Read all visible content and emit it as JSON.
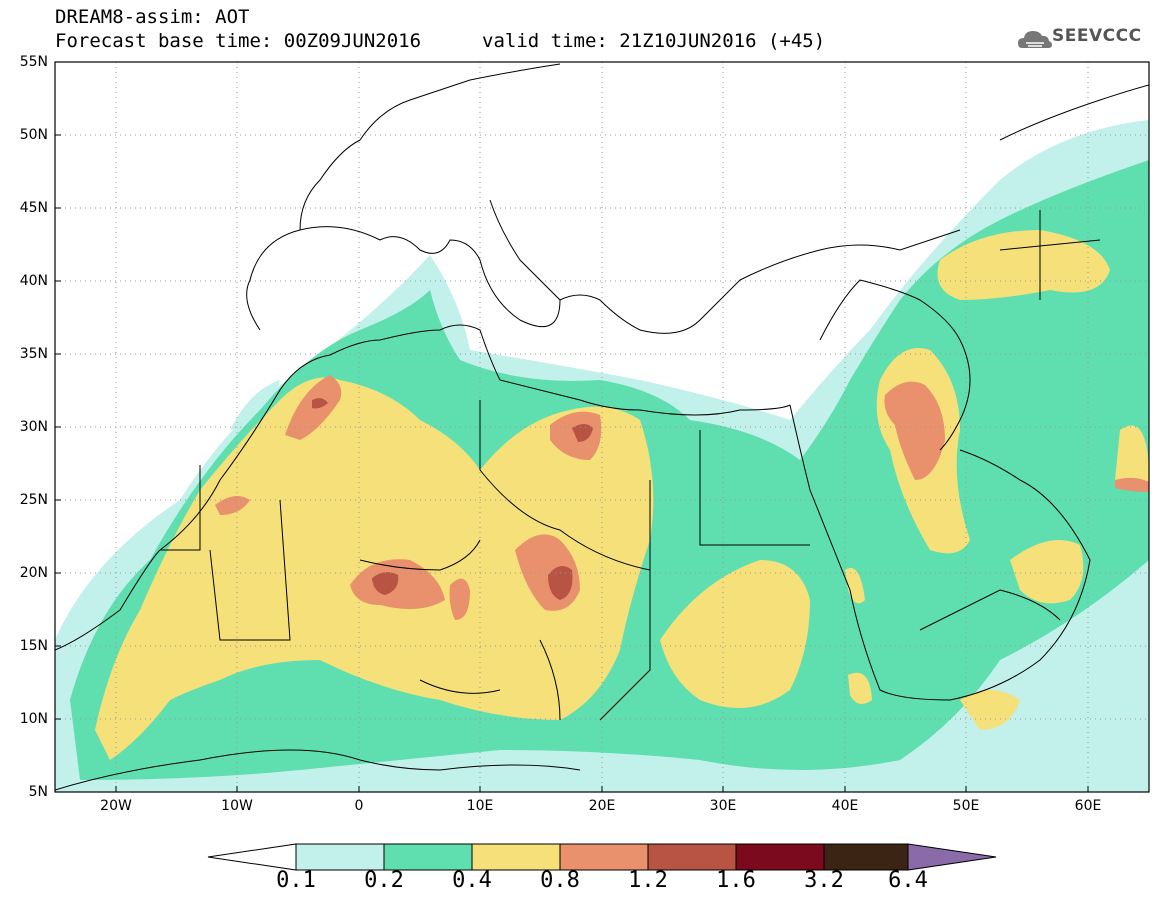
{
  "header": {
    "line1": "DREAM8-assim: AOT",
    "line2": "Forecast base time: 00Z09JUN2016",
    "line2b": "valid time: 21Z10JUN2016 (+45)",
    "logo_text": "SEEVCCC"
  },
  "map": {
    "lon_range": [
      -25,
      65
    ],
    "lat_range": [
      5,
      55
    ],
    "y_ticks": [
      "55N",
      "50N",
      "45N",
      "40N",
      "35N",
      "30N",
      "25N",
      "20N",
      "15N",
      "10N",
      "5N"
    ],
    "x_ticks": [
      "20W",
      "10W",
      "0",
      "10E",
      "20E",
      "30E",
      "40E",
      "50E",
      "60E"
    ],
    "grid": "dotted"
  },
  "colorbar": {
    "labels": [
      "0.1",
      "0.2",
      "0.4",
      "0.8",
      "1.2",
      "1.6",
      "3.2",
      "6.4"
    ],
    "colors": {
      "c1": "#c2f0ea",
      "c2": "#5fdfb0",
      "c3": "#f5e07a",
      "c4": "#e9906c",
      "c5": "#b85443",
      "c6": "#7c0a1e",
      "c7": "#3b2414",
      "c8": "#8a6aa8"
    }
  }
}
